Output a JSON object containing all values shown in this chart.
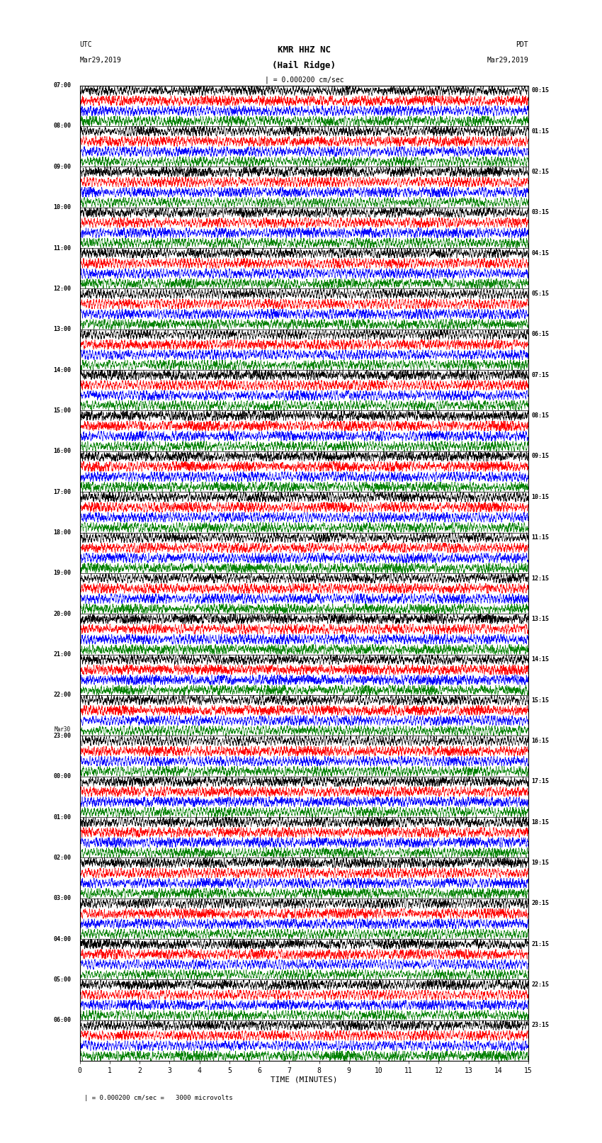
{
  "title_line1": "KMR HHZ NC",
  "title_line2": "(Hail Ridge)",
  "scale_label": "| = 0.000200 cm/sec",
  "footer_label": "| = 0.000200 cm/sec =   3000 microvolts",
  "utc_label": "UTC",
  "pdt_label": "PDT",
  "date_left": "Mar29,2019",
  "date_right": "Mar29,2019",
  "xlabel": "TIME (MINUTES)",
  "left_times": [
    "07:00",
    "08:00",
    "09:00",
    "10:00",
    "11:00",
    "12:00",
    "13:00",
    "14:00",
    "15:00",
    "16:00",
    "17:00",
    "18:00",
    "19:00",
    "20:00",
    "21:00",
    "22:00",
    "23:00",
    "Mar30\n00:00",
    "01:00",
    "02:00",
    "03:00",
    "04:00",
    "05:00",
    "06:00"
  ],
  "left_times_display": [
    "07:00",
    "08:00",
    "09:00",
    "10:00",
    "11:00",
    "12:00",
    "13:00",
    "14:00",
    "15:00",
    "16:00",
    "17:00",
    "18:00",
    "19:00",
    "20:00",
    "21:00",
    "22:00",
    "23:00",
    "00:00",
    "01:00",
    "02:00",
    "03:00",
    "04:00",
    "05:00",
    "06:00"
  ],
  "left_times_extra": [
    "",
    "",
    "",
    "",
    "",
    "",
    "",
    "",
    "",
    "",
    "",
    "",
    "",
    "",
    "",
    "",
    "Mar30",
    "",
    "",
    "",
    "",
    "",
    "",
    ""
  ],
  "right_times": [
    "00:15",
    "01:15",
    "02:15",
    "03:15",
    "04:15",
    "05:15",
    "06:15",
    "07:15",
    "08:15",
    "09:15",
    "10:15",
    "11:15",
    "12:15",
    "13:15",
    "14:15",
    "15:15",
    "16:15",
    "17:15",
    "18:15",
    "19:15",
    "20:15",
    "21:15",
    "22:15",
    "23:15"
  ],
  "n_rows": 24,
  "n_minutes": 15,
  "traces_per_row": 4,
  "colors": [
    "black",
    "red",
    "blue",
    "green"
  ],
  "bg_color": "white",
  "noise_seed": 42
}
